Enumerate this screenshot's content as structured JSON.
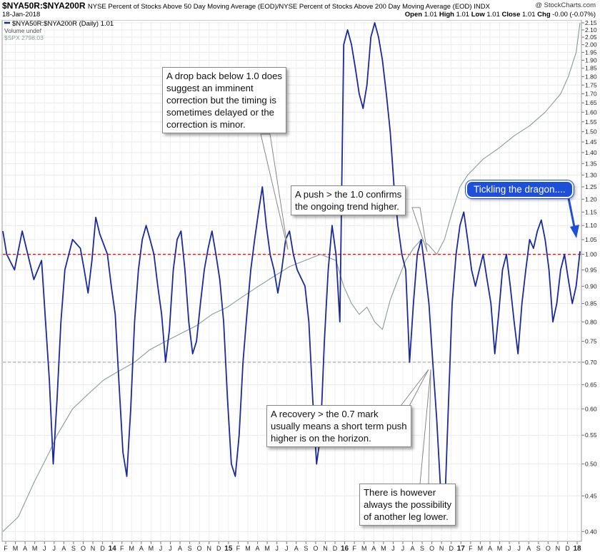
{
  "header": {
    "symbol": "$NYA50R:$NYA200R",
    "description": "NYSE Percent of Stocks Above 50 Day Moving Average (EOD)/NYSE Percent of Stocks Above 200 Day Moving Average (EOD)  INDX",
    "date": "18-Jan-2018",
    "brand": "@ StockCharts.com",
    "open_label": "Open",
    "open": "1.01",
    "high_label": "High",
    "high": "1.01",
    "low_label": "Low",
    "low": "1.01",
    "close_label": "Close",
    "close": "1.01",
    "chg_label": "Chg",
    "chg": "-0.00 (-0.07%)"
  },
  "legend": {
    "main": "$NYA50R:$NYA200R (Daily) 1.01",
    "volume": "Volume undef",
    "spx": "$SPX 2798.03"
  },
  "colors": {
    "ratio": "#1a2a9c",
    "spx": "#8a9b9b",
    "threshold_high": "#e0241b",
    "threshold_low": "#9a9a9a",
    "callout_blue": "#1e4fd8"
  },
  "annotations": {
    "drop": [
      "A drop back below 1.0 does",
      "suggest an imminent",
      "correction but the timing is",
      "sometimes delayed or the",
      "correction is minor."
    ],
    "push": [
      "A push > the 1.0 confirms",
      "the ongoing trend higher."
    ],
    "recovery": [
      "A recovery > the 0.7 mark",
      "usually means a short term push",
      "higher is on the horizon."
    ],
    "lower": [
      "There is however",
      "always the possibility",
      "of another leg lower."
    ],
    "dragon": "Tickling the dragon...."
  },
  "chart_data": {
    "type": "line",
    "y_scale": "log",
    "ylim": [
      0.39,
      2.16
    ],
    "y_ticks": [
      "2.15",
      "2.10",
      "2.05",
      "2.00",
      "1.95",
      "1.90",
      "1.85",
      "1.80",
      "1.75",
      "1.70",
      "1.65",
      "1.60",
      "1.55",
      "1.50",
      "1.45",
      "1.40",
      "1.35",
      "1.30",
      "1.25",
      "1.20",
      "1.15",
      "1.10",
      "1.05",
      "1.00",
      "0.95",
      "0.90",
      "0.85",
      "0.80",
      "0.75",
      "0.70",
      "0.65",
      "0.60",
      "0.55",
      "0.50",
      "0.45",
      "0.40"
    ],
    "x_ticks": [
      "F",
      "M",
      "A",
      "M",
      "J",
      "J",
      "A",
      "S",
      "O",
      "N",
      "D",
      "14",
      "F",
      "M",
      "A",
      "M",
      "J",
      "J",
      "A",
      "S",
      "O",
      "N",
      "D",
      "15",
      "F",
      "M",
      "A",
      "M",
      "J",
      "J",
      "A",
      "S",
      "O",
      "N",
      "D",
      "16",
      "F",
      "M",
      "A",
      "M",
      "J",
      "J",
      "A",
      "S",
      "O",
      "N",
      "D",
      "17",
      "F",
      "M",
      "A",
      "M",
      "J",
      "J",
      "A",
      "S",
      "O",
      "N",
      "D",
      "18"
    ],
    "bold_x_ticks": [
      "14",
      "15",
      "16",
      "17",
      "18"
    ],
    "reference_lines": [
      {
        "value": 1.0,
        "style": "dashed",
        "color": "#e0241b"
      },
      {
        "value": 0.7,
        "style": "dashed",
        "color": "#9a9a9a"
      }
    ],
    "series": [
      {
        "name": "$NYA50R:$NYA200R (Daily) 1.01",
        "color": "#1a2a9c",
        "points": [
          [
            0,
            1.08
          ],
          [
            1,
            1.0
          ],
          [
            3,
            0.95
          ],
          [
            5,
            1.08
          ],
          [
            8,
            0.92
          ],
          [
            10,
            0.98
          ],
          [
            12,
            0.66
          ],
          [
            13,
            0.5
          ],
          [
            14,
            0.62
          ],
          [
            15,
            0.8
          ],
          [
            16,
            0.95
          ],
          [
            18,
            1.05
          ],
          [
            20,
            1.02
          ],
          [
            21,
            0.95
          ],
          [
            22,
            0.88
          ],
          [
            23,
            0.98
          ],
          [
            24,
            1.13
          ],
          [
            25,
            1.07
          ],
          [
            27,
            1.0
          ],
          [
            28,
            0.9
          ],
          [
            29,
            0.82
          ],
          [
            30,
            0.65
          ],
          [
            31,
            0.52
          ],
          [
            32,
            0.48
          ],
          [
            33,
            0.6
          ],
          [
            34,
            0.8
          ],
          [
            35,
            0.95
          ],
          [
            36,
            1.05
          ],
          [
            37,
            1.1
          ],
          [
            38,
            1.05
          ],
          [
            39,
            1.0
          ],
          [
            40,
            0.9
          ],
          [
            41,
            0.82
          ],
          [
            42,
            0.7
          ],
          [
            43,
            0.78
          ],
          [
            44,
            0.95
          ],
          [
            45,
            1.05
          ],
          [
            46,
            1.08
          ],
          [
            47,
            0.95
          ],
          [
            48,
            0.8
          ],
          [
            49,
            0.72
          ],
          [
            50,
            0.75
          ],
          [
            51,
            0.85
          ],
          [
            52,
            0.95
          ],
          [
            53,
            1.02
          ],
          [
            54,
            1.08
          ],
          [
            55,
            1.0
          ],
          [
            56,
            0.92
          ],
          [
            57,
            0.8
          ],
          [
            58,
            0.62
          ],
          [
            59,
            0.5
          ],
          [
            60,
            0.48
          ],
          [
            61,
            0.55
          ],
          [
            62,
            0.7
          ],
          [
            63,
            0.82
          ],
          [
            64,
            0.95
          ],
          [
            65,
            1.05
          ],
          [
            66,
            1.15
          ],
          [
            67,
            1.25
          ],
          [
            68,
            1.1
          ],
          [
            69,
            1.0
          ],
          [
            70,
            0.95
          ],
          [
            71,
            0.88
          ],
          [
            72,
            0.95
          ],
          [
            73,
            1.05
          ],
          [
            74,
            1.08
          ],
          [
            75,
            1.0
          ],
          [
            76,
            0.95
          ],
          [
            78,
            0.9
          ],
          [
            79,
            0.8
          ],
          [
            80,
            0.62
          ],
          [
            81,
            0.5
          ],
          [
            82,
            0.55
          ],
          [
            83,
            0.75
          ],
          [
            84,
            0.95
          ],
          [
            85,
            1.1
          ],
          [
            86,
            1.0
          ],
          [
            87,
            0.8
          ],
          [
            88,
            2.0
          ],
          [
            89,
            2.1
          ],
          [
            90,
            2.0
          ],
          [
            91,
            1.85
          ],
          [
            92,
            1.7
          ],
          [
            93,
            1.62
          ],
          [
            94,
            1.75
          ],
          [
            95,
            2.05
          ],
          [
            96,
            2.15
          ],
          [
            97,
            2.05
          ],
          [
            98,
            1.9
          ],
          [
            99,
            1.7
          ],
          [
            100,
            1.5
          ],
          [
            101,
            1.25
          ],
          [
            102,
            1.1
          ],
          [
            103,
            1.0
          ],
          [
            104,
            0.95
          ],
          [
            105,
            0.7
          ],
          [
            106,
            0.85
          ],
          [
            107,
            1.0
          ],
          [
            108,
            1.05
          ],
          [
            109,
            0.95
          ],
          [
            110,
            0.85
          ],
          [
            111,
            0.7
          ],
          [
            112,
            0.58
          ],
          [
            113,
            0.46
          ],
          [
            114,
            0.42
          ],
          [
            115,
            0.6
          ],
          [
            116,
            0.85
          ],
          [
            117,
            1.0
          ],
          [
            118,
            1.1
          ],
          [
            119,
            1.15
          ],
          [
            120,
            1.05
          ],
          [
            121,
            0.95
          ],
          [
            122,
            0.9
          ],
          [
            123,
            0.95
          ],
          [
            124,
            1.0
          ],
          [
            125,
            0.92
          ],
          [
            126,
            0.85
          ],
          [
            127,
            0.72
          ],
          [
            128,
            0.82
          ],
          [
            129,
            0.95
          ],
          [
            130,
            1.0
          ],
          [
            131,
            0.9
          ],
          [
            132,
            0.8
          ],
          [
            133,
            0.72
          ],
          [
            134,
            0.85
          ],
          [
            135,
            0.95
          ],
          [
            136,
            1.05
          ],
          [
            137,
            1.02
          ],
          [
            138,
            1.08
          ],
          [
            139,
            1.12
          ],
          [
            140,
            1.05
          ],
          [
            141,
            0.95
          ],
          [
            142,
            0.8
          ],
          [
            143,
            0.85
          ],
          [
            144,
            0.95
          ],
          [
            145,
            1.0
          ],
          [
            146,
            0.92
          ],
          [
            147,
            0.85
          ],
          [
            148,
            0.9
          ],
          [
            149,
            1.01
          ]
        ]
      },
      {
        "name": "$SPX 2798.03",
        "color": "#8a9b9b",
        "points": [
          [
            0,
            0.4
          ],
          [
            4,
            0.42
          ],
          [
            8,
            0.47
          ],
          [
            12,
            0.52
          ],
          [
            14,
            0.55
          ],
          [
            18,
            0.6
          ],
          [
            22,
            0.63
          ],
          [
            26,
            0.66
          ],
          [
            30,
            0.68
          ],
          [
            34,
            0.7
          ],
          [
            38,
            0.73
          ],
          [
            42,
            0.75
          ],
          [
            46,
            0.77
          ],
          [
            50,
            0.79
          ],
          [
            54,
            0.82
          ],
          [
            58,
            0.84
          ],
          [
            62,
            0.87
          ],
          [
            66,
            0.9
          ],
          [
            70,
            0.93
          ],
          [
            74,
            0.96
          ],
          [
            78,
            0.98
          ],
          [
            82,
            1.0
          ],
          [
            86,
            0.98
          ],
          [
            88,
            0.9
          ],
          [
            90,
            0.85
          ],
          [
            92,
            0.82
          ],
          [
            94,
            0.84
          ],
          [
            96,
            0.8
          ],
          [
            98,
            0.78
          ],
          [
            100,
            0.86
          ],
          [
            102,
            0.92
          ],
          [
            104,
            0.98
          ],
          [
            106,
            1.02
          ],
          [
            108,
            1.05
          ],
          [
            110,
            1.03
          ],
          [
            112,
            1.0
          ],
          [
            114,
            1.05
          ],
          [
            116,
            1.15
          ],
          [
            118,
            1.25
          ],
          [
            120,
            1.3
          ],
          [
            124,
            1.37
          ],
          [
            128,
            1.42
          ],
          [
            132,
            1.48
          ],
          [
            136,
            1.53
          ],
          [
            140,
            1.6
          ],
          [
            144,
            1.7
          ],
          [
            146,
            1.8
          ],
          [
            148,
            1.95
          ],
          [
            149,
            2.15
          ]
        ]
      }
    ]
  }
}
